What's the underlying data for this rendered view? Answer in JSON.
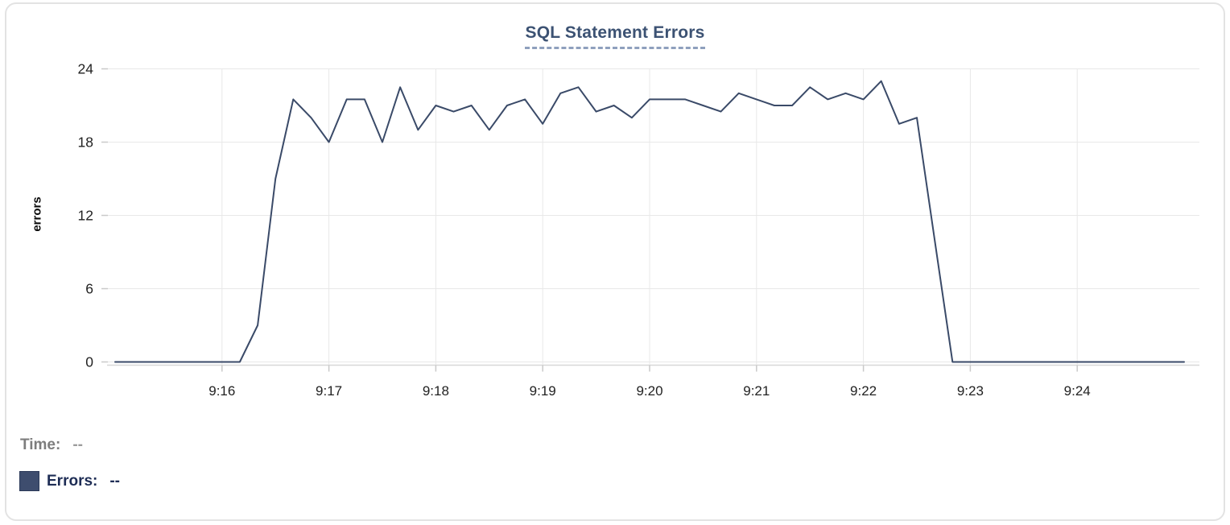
{
  "title": "SQL Statement Errors",
  "y_axis_label": "errors",
  "readout": {
    "time_label": "Time:",
    "time_value": "--",
    "errors_label": "Errors:",
    "errors_value": "--"
  },
  "colors": {
    "series": "#3a4a68",
    "grid": "#e8e8e8",
    "axis_line": "#d8d8d8",
    "tick": "#c9c9c9",
    "axis_text": "#222222",
    "title_text": "#3c5273",
    "title_underline": "#8fa0bd",
    "time_label_text": "#7d7d7d",
    "errors_label_text": "#1e2d55",
    "legend_swatch": "#3e4d6e"
  },
  "chart_data": {
    "type": "line",
    "title": "SQL Statement Errors",
    "xlabel": "",
    "ylabel": "errors",
    "ylim": [
      0,
      24
    ],
    "y_ticks": [
      0,
      6,
      12,
      18,
      24
    ],
    "x_ticks": [
      "9:16",
      "9:17",
      "9:18",
      "9:19",
      "9:20",
      "9:21",
      "9:22",
      "9:23",
      "9:24"
    ],
    "x_range": [
      "9:15:00",
      "9:25:00"
    ],
    "grid": true,
    "legend_position": "below-left",
    "series": [
      {
        "name": "Errors",
        "x": [
          "9:15:00",
          "9:15:10",
          "9:15:20",
          "9:15:30",
          "9:15:40",
          "9:15:50",
          "9:16:00",
          "9:16:10",
          "9:16:20",
          "9:16:30",
          "9:16:40",
          "9:16:50",
          "9:17:00",
          "9:17:10",
          "9:17:20",
          "9:17:30",
          "9:17:40",
          "9:17:50",
          "9:18:00",
          "9:18:10",
          "9:18:20",
          "9:18:30",
          "9:18:40",
          "9:18:50",
          "9:19:00",
          "9:19:10",
          "9:19:20",
          "9:19:30",
          "9:19:40",
          "9:19:50",
          "9:20:00",
          "9:20:10",
          "9:20:20",
          "9:20:30",
          "9:20:40",
          "9:20:50",
          "9:21:00",
          "9:21:10",
          "9:21:20",
          "9:21:30",
          "9:21:40",
          "9:21:50",
          "9:22:00",
          "9:22:10",
          "9:22:20",
          "9:22:30",
          "9:22:40",
          "9:22:50",
          "9:23:00",
          "9:23:10",
          "9:23:20",
          "9:23:30",
          "9:23:40",
          "9:23:50",
          "9:24:00",
          "9:24:10",
          "9:24:20",
          "9:24:30",
          "9:24:40",
          "9:24:50",
          "9:25:00"
        ],
        "values": [
          0,
          0,
          0,
          0,
          0,
          0,
          0,
          0,
          3,
          15,
          21.5,
          20,
          18,
          21.5,
          21.5,
          18,
          22.5,
          19,
          21,
          20.5,
          21,
          19,
          21,
          21.5,
          19.5,
          22,
          22.5,
          20.5,
          21,
          20,
          21.5,
          21.5,
          21.5,
          21,
          20.5,
          22,
          21.5,
          21,
          21,
          22.5,
          21.5,
          22,
          21.5,
          23,
          19.5,
          20,
          10,
          0,
          0,
          0,
          0,
          0,
          0,
          0,
          0,
          0,
          0,
          0,
          0,
          0,
          0
        ]
      }
    ]
  }
}
